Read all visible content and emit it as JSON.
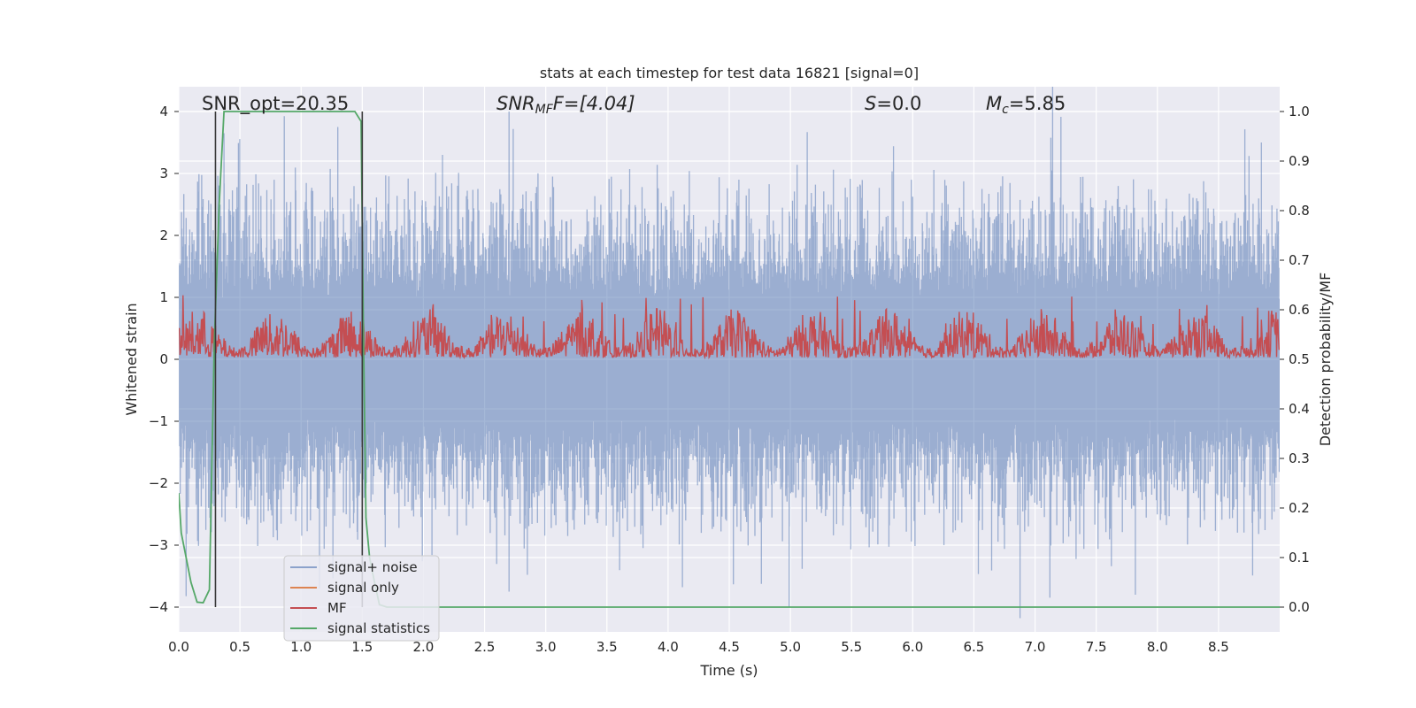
{
  "chart_data": {
    "type": "line",
    "title": "stats at each timestep for test data 16821 [signal=0]",
    "xlabel": "Time (s)",
    "ylabel_left": "Whitened strain",
    "ylabel_right": "Detection probability/MF",
    "xlim": [
      0.0,
      9.0
    ],
    "ylim_left": [
      -4.4,
      4.4
    ],
    "ylim_right": [
      -0.05,
      1.05
    ],
    "xticks": [
      0.0,
      0.5,
      1.0,
      1.5,
      2.0,
      2.5,
      3.0,
      3.5,
      4.0,
      4.5,
      5.0,
      5.5,
      6.0,
      6.5,
      7.0,
      7.5,
      8.0,
      8.5
    ],
    "xtick_labels": [
      "0.0",
      "0.5",
      "1.0",
      "1.5",
      "2.0",
      "2.5",
      "3.0",
      "3.5",
      "4.0",
      "4.5",
      "5.0",
      "5.5",
      "6.0",
      "6.5",
      "7.0",
      "7.5",
      "8.0",
      "8.5"
    ],
    "yticks_left": [
      4,
      3,
      2,
      1,
      0,
      -1,
      -2,
      -3,
      -4
    ],
    "ytick_labels_left": [
      "4",
      "3",
      "2",
      "1",
      "0",
      "−1",
      "−2",
      "−3",
      "−4"
    ],
    "yticks_right": [
      1.0,
      0.9,
      0.8,
      0.7,
      0.6,
      0.5,
      0.4,
      0.3,
      0.2,
      0.1,
      0.0
    ],
    "ytick_labels_right": [
      "1.0",
      "0.9",
      "0.8",
      "0.7",
      "0.6",
      "0.5",
      "0.4",
      "0.3",
      "0.2",
      "0.1",
      "0.0"
    ],
    "annotations": {
      "snr_opt": "SNR_opt=20.35",
      "snr_mf_sym": "SNR",
      "snr_mf_sub": "MF",
      "snr_mf_val": "F=[4.04]",
      "s_sym": "S",
      "s_val": "=0.0",
      "mc_sym": "M",
      "mc_sub": "c",
      "mc_val": "=5.85"
    },
    "vlines": [
      0.3,
      1.5
    ],
    "series": [
      {
        "name": "signal+ noise",
        "axis": "left",
        "color": "#4c72b0",
        "description": "whitened strain noise, band roughly -2 to +2 with spikes to about +/-4",
        "duration": 9.0,
        "envelope": 1.9,
        "spikes": [
          {
            "x": 0.37,
            "y": 3.65
          },
          {
            "x": 2.7,
            "y": 4.0
          },
          {
            "x": 1.3,
            "y": 3.75
          },
          {
            "x": 8.85,
            "y": 3.5
          },
          {
            "x": 4.99,
            "y": -4.0
          },
          {
            "x": 7.82,
            "y": -3.8
          },
          {
            "x": 2.7,
            "y": -3.75
          },
          {
            "x": 1.15,
            "y": -3.7
          }
        ]
      },
      {
        "name": "signal only",
        "axis": "left",
        "color": "#dd8452",
        "values": []
      },
      {
        "name": "MF",
        "axis": "right",
        "color": "#c44e52",
        "description": "matched filter output fluctuating between about 0.50 and 0.62",
        "baseline": 0.5,
        "amplitude": 0.1,
        "peak": 0.63
      },
      {
        "name": "signal statistics",
        "axis": "right",
        "color": "#55a868",
        "x": [
          0.0,
          0.02,
          0.06,
          0.1,
          0.15,
          0.2,
          0.25,
          0.29,
          0.33,
          0.37,
          0.4,
          0.6,
          0.8,
          1.0,
          1.2,
          1.4,
          1.44,
          1.49,
          1.51,
          1.53,
          1.56,
          1.6,
          1.64,
          1.7,
          2.0,
          3.0,
          4.0,
          5.0,
          6.0,
          7.0,
          8.0,
          9.0
        ],
        "y": [
          0.23,
          0.15,
          0.1,
          0.05,
          0.01,
          0.009,
          0.035,
          0.53,
          0.81,
          1.0,
          1.0,
          1.0,
          1.0,
          1.0,
          1.0,
          1.0,
          1.0,
          0.98,
          0.55,
          0.18,
          0.1,
          0.05,
          0.005,
          0.0,
          0.0,
          0.0,
          0.0,
          0.0,
          0.0,
          0.0,
          0.0,
          0.0
        ]
      }
    ],
    "legend": {
      "placement": "lower-left",
      "entries": [
        "signal+ noise",
        "signal only",
        "MF",
        "signal statistics"
      ]
    },
    "style": {
      "background": "#eaeaf2",
      "grid": true,
      "grid_color": "#ffffff",
      "vline_color": "#3a3a3a"
    }
  }
}
